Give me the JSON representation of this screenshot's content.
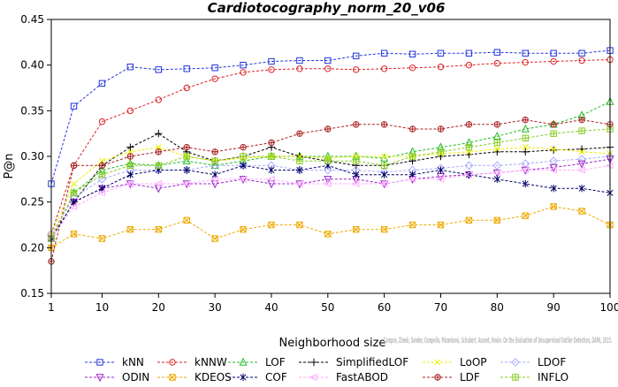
{
  "chart_data": {
    "type": "line",
    "title": "Cardiotocography_norm_20_v06",
    "xlabel": "Neighborhood size",
    "ylabel": "P@n",
    "xlim": [
      1,
      100
    ],
    "ylim": [
      0.15,
      0.45
    ],
    "xticks": [
      1,
      10,
      20,
      30,
      40,
      50,
      60,
      70,
      80,
      90,
      100
    ],
    "xtick_labels": [
      "1",
      "10",
      "20",
      "30",
      "40",
      "50",
      "60",
      "70",
      "80",
      "90",
      "100"
    ],
    "yticks": [
      0.15,
      0.2,
      0.25,
      0.3,
      0.35,
      0.4,
      0.45
    ],
    "ytick_labels": [
      "0.15",
      "0.20",
      "0.25",
      "0.30",
      "0.35",
      "0.40",
      "0.45"
    ],
    "legend_position": "bottom",
    "grid": false,
    "annotation": "Campos, Zimek, Sander, Campello, Micenková, Schubert, Assent, Houle: On the Evaluation of Unsupervised Outlier Detection, DAMI, 2015.",
    "x_sample_points": [
      1,
      5,
      10,
      15,
      20,
      25,
      30,
      35,
      40,
      45,
      50,
      55,
      60,
      65,
      70,
      75,
      80,
      85,
      90,
      95,
      100
    ],
    "series": [
      {
        "name": "kNN",
        "color": "#2233dd",
        "marker": "square",
        "values": [
          0.27,
          0.355,
          0.38,
          0.398,
          0.395,
          0.396,
          0.397,
          0.4,
          0.404,
          0.405,
          0.405,
          0.41,
          0.413,
          0.412,
          0.413,
          0.413,
          0.414,
          0.413,
          0.413,
          0.413,
          0.416
        ]
      },
      {
        "name": "kNNW",
        "color": "#dd2222",
        "marker": "circle",
        "values": [
          0.215,
          0.29,
          0.338,
          0.35,
          0.362,
          0.375,
          0.385,
          0.392,
          0.395,
          0.396,
          0.396,
          0.395,
          0.396,
          0.397,
          0.398,
          0.4,
          0.402,
          0.403,
          0.404,
          0.405,
          0.406
        ]
      },
      {
        "name": "LOF",
        "color": "#22bb22",
        "marker": "triangle-up",
        "values": [
          0.21,
          0.26,
          0.285,
          0.292,
          0.29,
          0.295,
          0.29,
          0.295,
          0.3,
          0.3,
          0.3,
          0.3,
          0.298,
          0.305,
          0.31,
          0.315,
          0.322,
          0.33,
          0.335,
          0.345,
          0.36
        ]
      },
      {
        "name": "SimplifiedLOF",
        "color": "#000000",
        "marker": "plus",
        "values": [
          0.21,
          0.25,
          0.29,
          0.31,
          0.325,
          0.305,
          0.295,
          0.3,
          0.31,
          0.3,
          0.295,
          0.29,
          0.29,
          0.295,
          0.3,
          0.302,
          0.305,
          0.305,
          0.307,
          0.308,
          0.31
        ]
      },
      {
        "name": "LoOP",
        "color": "#eeee00",
        "marker": "x",
        "values": [
          0.215,
          0.27,
          0.295,
          0.305,
          0.31,
          0.3,
          0.295,
          0.298,
          0.3,
          0.3,
          0.298,
          0.3,
          0.3,
          0.3,
          0.303,
          0.305,
          0.308,
          0.31,
          0.308,
          0.305,
          0.303
        ]
      },
      {
        "name": "LDOF",
        "color": "#aaaaff",
        "marker": "diamond",
        "values": [
          0.215,
          0.255,
          0.275,
          0.285,
          0.285,
          0.285,
          0.29,
          0.29,
          0.29,
          0.285,
          0.285,
          0.285,
          0.283,
          0.285,
          0.287,
          0.29,
          0.29,
          0.292,
          0.295,
          0.297,
          0.3
        ]
      },
      {
        "name": "ODIN",
        "color": "#9922cc",
        "marker": "triangle-down",
        "values": [
          0.21,
          0.25,
          0.265,
          0.27,
          0.265,
          0.27,
          0.27,
          0.275,
          0.27,
          0.27,
          0.275,
          0.275,
          0.27,
          0.275,
          0.278,
          0.28,
          0.282,
          0.285,
          0.288,
          0.292,
          0.297
        ]
      },
      {
        "name": "KDEOS",
        "color": "#eeaa00",
        "marker": "square-x",
        "values": [
          0.2,
          0.215,
          0.21,
          0.22,
          0.22,
          0.23,
          0.21,
          0.22,
          0.225,
          0.225,
          0.215,
          0.22,
          0.22,
          0.225,
          0.225,
          0.23,
          0.23,
          0.235,
          0.245,
          0.24,
          0.225
        ]
      },
      {
        "name": "COF",
        "color": "#000066",
        "marker": "asterisk",
        "values": [
          0.21,
          0.25,
          0.265,
          0.28,
          0.285,
          0.285,
          0.28,
          0.29,
          0.285,
          0.285,
          0.29,
          0.28,
          0.28,
          0.28,
          0.285,
          0.28,
          0.275,
          0.27,
          0.265,
          0.265,
          0.26
        ]
      },
      {
        "name": "FastABOD",
        "color": "#ffaaff",
        "marker": "triangle-left",
        "values": [
          0.21,
          0.245,
          0.26,
          0.27,
          0.27,
          0.27,
          0.275,
          0.275,
          0.275,
          0.27,
          0.27,
          0.27,
          0.27,
          0.275,
          0.275,
          0.28,
          0.282,
          0.285,
          0.285,
          0.285,
          0.29
        ]
      },
      {
        "name": "LDF",
        "color": "#aa2222",
        "marker": "circle-plus",
        "values": [
          0.185,
          0.29,
          0.29,
          0.3,
          0.305,
          0.31,
          0.305,
          0.31,
          0.315,
          0.325,
          0.33,
          0.335,
          0.335,
          0.33,
          0.33,
          0.335,
          0.335,
          0.34,
          0.335,
          0.34,
          0.335
        ]
      },
      {
        "name": "INFLO",
        "color": "#88cc22",
        "marker": "square-cross",
        "values": [
          0.21,
          0.26,
          0.28,
          0.29,
          0.29,
          0.3,
          0.295,
          0.3,
          0.3,
          0.295,
          0.295,
          0.295,
          0.29,
          0.3,
          0.305,
          0.31,
          0.315,
          0.32,
          0.325,
          0.328,
          0.33
        ]
      }
    ]
  }
}
